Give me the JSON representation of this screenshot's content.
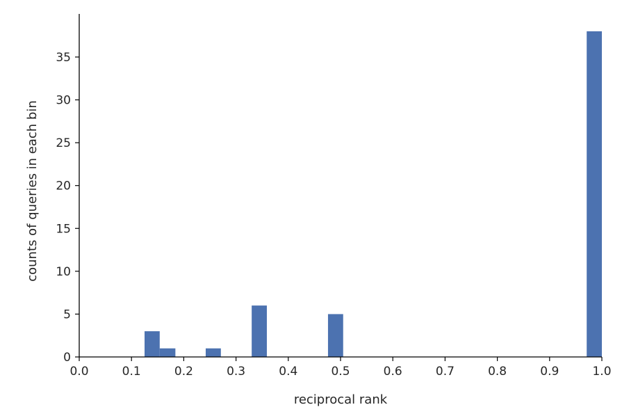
{
  "chart_data": {
    "type": "bar",
    "title": "",
    "xlabel": "reciprocal rank",
    "ylabel": "counts of queries in each bin",
    "xlim": [
      0.0,
      1.0
    ],
    "ylim": [
      0,
      38
    ],
    "grid": false,
    "bar_color": "#4c72b0",
    "bins": [
      {
        "x0": 0.125,
        "x1": 0.154,
        "count": 3
      },
      {
        "x0": 0.154,
        "x1": 0.184,
        "count": 1
      },
      {
        "x0": 0.242,
        "x1": 0.271,
        "count": 1
      },
      {
        "x0": 0.33,
        "x1": 0.359,
        "count": 6
      },
      {
        "x0": 0.476,
        "x1": 0.505,
        "count": 5
      },
      {
        "x0": 0.971,
        "x1": 1.0,
        "count": 38
      }
    ],
    "x_ticks": [
      {
        "value": 0.0,
        "label": "0.0"
      },
      {
        "value": 0.1,
        "label": "0.1"
      },
      {
        "value": 0.2,
        "label": "0.2"
      },
      {
        "value": 0.3,
        "label": "0.3"
      },
      {
        "value": 0.4,
        "label": "0.4"
      },
      {
        "value": 0.5,
        "label": "0.5"
      },
      {
        "value": 0.6,
        "label": "0.6"
      },
      {
        "value": 0.7,
        "label": "0.7"
      },
      {
        "value": 0.8,
        "label": "0.8"
      },
      {
        "value": 0.9,
        "label": "0.9"
      },
      {
        "value": 1.0,
        "label": "1.0"
      }
    ],
    "y_ticks": [
      {
        "value": 0,
        "label": "0"
      },
      {
        "value": 5,
        "label": "5"
      },
      {
        "value": 10,
        "label": "10"
      },
      {
        "value": 15,
        "label": "15"
      },
      {
        "value": 20,
        "label": "20"
      },
      {
        "value": 25,
        "label": "25"
      },
      {
        "value": 30,
        "label": "30"
      },
      {
        "value": 35,
        "label": "35"
      }
    ]
  }
}
